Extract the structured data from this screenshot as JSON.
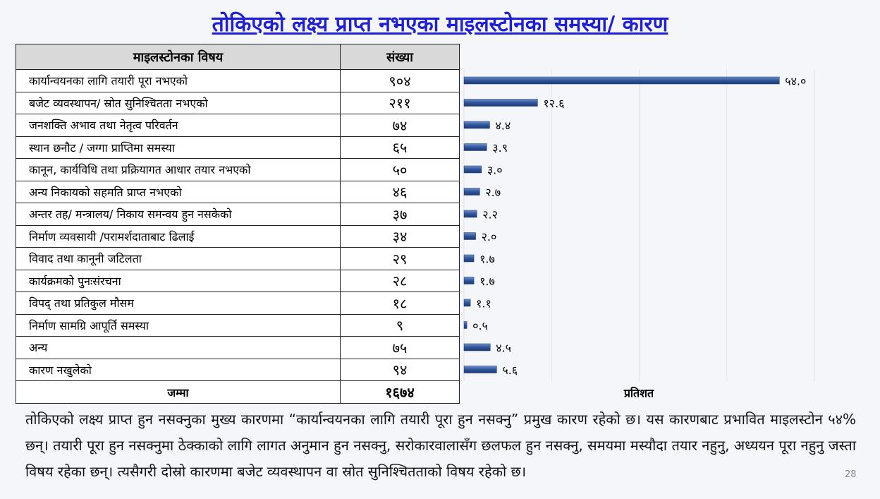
{
  "title": "तोकिएको लक्ष्य प्राप्त नभएका माइलस्टोनका समस्या/ कारण",
  "table": {
    "header": [
      "माइलस्टोनका विषय",
      "संख्या"
    ],
    "rows": [
      [
        "कार्यान्वयनका लागि तयारी पूरा नभएको",
        "९०४"
      ],
      [
        "बजेट व्यवस्थापन/ स्रोत सुनिश्चितता नभएको",
        "२११"
      ],
      [
        "जनशक्ति अभाव तथा नेतृत्व परिवर्तन",
        "७४"
      ],
      [
        "स्थान छनौट / जग्गा प्राप्तिमा समस्या",
        "६५"
      ],
      [
        "कानून, कार्यविधि तथा प्रक्रियागत आधार तयार नभएको",
        "५०"
      ],
      [
        "अन्य निकायको सहमति प्राप्त नभएको",
        "४६"
      ],
      [
        "अन्तर तह/ मन्त्रालय/ निकाय समन्वय हुन नसकेको",
        "३७"
      ],
      [
        "निर्माण व्यवसायी /परामर्शदाताबाट ढिलाई",
        "३४"
      ],
      [
        "विवाद तथा कानूनी जटिलता",
        "२९"
      ],
      [
        "कार्यक्रमको पुनःसंरचना",
        "२८"
      ],
      [
        "विपद् तथा प्रतिकुल मौसम",
        "१८"
      ],
      [
        "निर्माण सामग्रि आपूर्ति समस्या",
        "९"
      ],
      [
        "अन्य",
        "७५"
      ],
      [
        "कारण नखुलेको",
        "९४"
      ]
    ],
    "total": [
      "जम्मा",
      "१६७४"
    ]
  },
  "chart_data": {
    "type": "bar",
    "orientation": "horizontal",
    "xlabel": "प्रतिशत",
    "values": [
      54.0,
      12.6,
      4.4,
      3.9,
      3.0,
      2.7,
      2.2,
      2.0,
      1.7,
      1.7,
      1.1,
      0.5,
      4.5,
      5.6
    ],
    "value_labels": [
      "५४.०",
      "१२.६",
      "४.४",
      "३.९",
      "३.०",
      "२.७",
      "२.२",
      "२.०",
      "१.७",
      "१.७",
      "१.१",
      "०.५",
      "४.५",
      "५.६"
    ],
    "color": "#2f5597",
    "xlim": [
      0,
      60
    ],
    "xticks": [
      0,
      15,
      30,
      45,
      60
    ],
    "grid": true
  },
  "paragraph": "तोकिएको लक्ष्य प्राप्त हुन नसक्नुका मुख्य कारणमा “कार्यान्वयनका लागि तयारी पूरा हुन नसक्नु” प्रमुख कारण रहेको छ। यस कारणबाट प्रभावित माइलस्टोन ५४% छन्। तयारी पूरा हुन नसक्नुमा ठेक्काको लागि लागत अनुमान हुन नसक्नु, सरोकारवालासँग छलफल हुन नसक्नु, समयमा मस्यौदा तयार नहुनु, अध्ययन पूरा नहुनु जस्ता विषय रहेका छन्। त्यसैगरी दोस्रो कारणमा बजेट व्यवस्थापन वा स्रोत सुनिश्चितताको विषय रहेको छ।",
  "page_number": "28"
}
